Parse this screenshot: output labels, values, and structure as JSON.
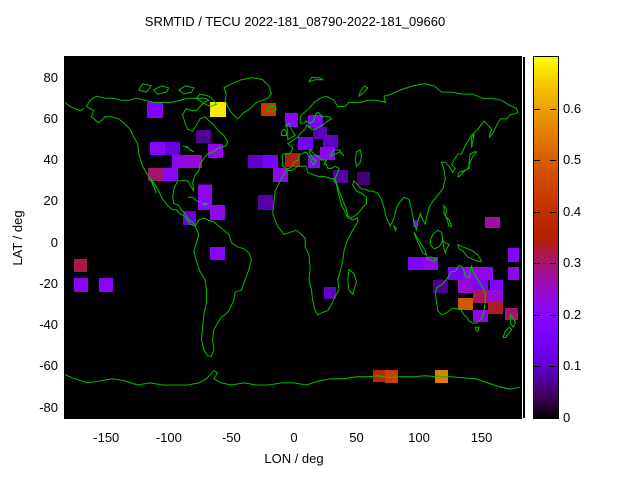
{
  "title": "SRMTID / TECU 2022-181_08790-2022-181_09660",
  "chart_data": {
    "type": "heatmap",
    "title": "SRMTID / TECU 2022-181_08790-2022-181_09660",
    "xlabel": "LON / deg",
    "ylabel": "LAT / deg",
    "xlim": [
      -183,
      181.5
    ],
    "ylim": [
      -85,
      90
    ],
    "xticks": [
      -150,
      -100,
      -50,
      0,
      50,
      100,
      150
    ],
    "yticks": [
      80,
      60,
      40,
      20,
      0,
      -20,
      -40,
      -60,
      -80
    ],
    "grid": false,
    "legend_position": "none",
    "background_color": "#000000",
    "coastline_color": "#00c000",
    "colorbar": {
      "min": 0,
      "max": 0.7,
      "tick_labels": [
        "0",
        "0.1",
        "0.2",
        "0.3",
        "0.4",
        "0.5",
        "0.6"
      ],
      "tick_values": [
        0,
        0.1,
        0.2,
        0.3,
        0.4,
        0.5,
        0.6
      ],
      "palette": "gnuplot pm3d rgbformulae 7,5,15 (black-purple-red-yellow)"
    },
    "cells": [
      {
        "lon": [
          -117.5,
          -104.7
        ],
        "lat": [
          60.4,
          68.2
        ],
        "tecu": 0.17
      },
      {
        "lon": [
          -67.1,
          -54.3
        ],
        "lat": [
          60.9,
          68.2
        ],
        "tecu": 0.68
      },
      {
        "lon": [
          -26.3,
          -14.3
        ],
        "lat": [
          61.4,
          67.7
        ],
        "tecu": 0.42
      },
      {
        "lon": [
          -78.3,
          -66.3
        ],
        "lat": [
          48.3,
          54.6
        ],
        "tecu": 0.07
      },
      {
        "lon": [
          -115.1,
          -103.1
        ],
        "lat": [
          42.5,
          48.8
        ],
        "tecu": 0.2
      },
      {
        "lon": [
          -103.1,
          -91.1
        ],
        "lat": [
          42.5,
          48.8
        ],
        "tecu": 0.12
      },
      {
        "lon": [
          -68.7,
          -56.7
        ],
        "lat": [
          41.0,
          47.9
        ],
        "tecu": 0.22
      },
      {
        "lon": [
          -97.5,
          -85.5
        ],
        "lat": [
          36.2,
          42.5
        ],
        "tecu": 0.22
      },
      {
        "lon": [
          -85.5,
          -73.5
        ],
        "lat": [
          36.2,
          42.5
        ],
        "tecu": 0.24
      },
      {
        "lon": [
          -116.7,
          -104.7
        ],
        "lat": [
          29.9,
          36.2
        ],
        "tecu": 0.3
      },
      {
        "lon": [
          -104.7,
          -92.7
        ],
        "lat": [
          29.9,
          36.2
        ],
        "tecu": 0.2
      },
      {
        "lon": [
          -76.7,
          -65.5
        ],
        "lat": [
          21.6,
          28.1
        ],
        "tecu": 0.22
      },
      {
        "lon": [
          -76.7,
          -65.5
        ],
        "lat": [
          15.8,
          22.1
        ],
        "tecu": 0.2
      },
      {
        "lon": [
          -67.1,
          -55.1
        ],
        "lat": [
          11.0,
          18.3
        ],
        "tecu": 0.22
      },
      {
        "lon": [
          -88.7,
          -78.3
        ],
        "lat": [
          8.6,
          15.4
        ],
        "tecu": 0.12
      },
      {
        "lon": [
          -7.1,
          3.3
        ],
        "lat": [
          56.1,
          62.8
        ],
        "tecu": 0.2
      },
      {
        "lon": [
          11.3,
          23.3
        ],
        "lat": [
          55.6,
          61.9
        ],
        "tecu": 0.17
      },
      {
        "lon": [
          15.3,
          26.5
        ],
        "lat": [
          50.2,
          56.1
        ],
        "tecu": 0.09
      },
      {
        "lon": [
          3.3,
          15.3
        ],
        "lat": [
          44.9,
          51.2
        ],
        "tecu": 0.15
      },
      {
        "lon": [
          23.3,
          35.3
        ],
        "lat": [
          45.9,
          52.2
        ],
        "tecu": 0.1
      },
      {
        "lon": [
          20.9,
          32.9
        ],
        "lat": [
          40.1,
          46.4
        ],
        "tecu": 0.22
      },
      {
        "lon": [
          -36.7,
          -24.7
        ],
        "lat": [
          36.2,
          42.5
        ],
        "tecu": 0.1
      },
      {
        "lon": [
          -24.7,
          -12.7
        ],
        "lat": [
          36.2,
          42.5
        ],
        "tecu": 0.15
      },
      {
        "lon": [
          -7.1,
          4.9
        ],
        "lat": [
          36.7,
          43.5
        ],
        "tecu": 0.34
      },
      {
        "lon": [
          11.3,
          20.9
        ],
        "lat": [
          36.2,
          42.5
        ],
        "tecu": 0.2
      },
      {
        "lon": [
          -16.7,
          -4.7
        ],
        "lat": [
          29.4,
          36.2
        ],
        "tecu": 0.22
      },
      {
        "lon": [
          31.3,
          43.3
        ],
        "lat": [
          28.9,
          35.2
        ],
        "tecu": 0.08
      },
      {
        "lon": [
          50.5,
          60.9
        ],
        "lat": [
          28.0,
          34.2
        ],
        "tecu": 0.05
      },
      {
        "lon": [
          -28.7,
          -16.7
        ],
        "lat": [
          15.8,
          23.1
        ],
        "tecu": 0.08
      },
      {
        "lon": [
          -175.8,
          -165.4
        ],
        "lat": [
          -14.2,
          -7.9
        ],
        "tecu": 0.32
      },
      {
        "lon": [
          -175.8,
          -164.6
        ],
        "lat": [
          -23.9,
          -17.1
        ],
        "tecu": 0.2
      },
      {
        "lon": [
          -155.8,
          -144.6
        ],
        "lat": [
          -23.9,
          -17.1
        ],
        "tecu": 0.2
      },
      {
        "lon": [
          -67.1,
          -55.1
        ],
        "lat": [
          -8.4,
          -2.1
        ],
        "tecu": 0.2
      },
      {
        "lon": [
          24.1,
          33.7
        ],
        "lat": [
          -27.3,
          -21.5
        ],
        "tecu": 0.1
      },
      {
        "lon": [
          95.2,
          99.2
        ],
        "lat": [
          7.6,
          11.0
        ],
        "tecu": 0.15
      },
      {
        "lon": [
          152.7,
          164.7
        ],
        "lat": [
          7.1,
          12.4
        ],
        "tecu": 0.27
      },
      {
        "lon": [
          91.2,
          103.2
        ],
        "lat": [
          -13.2,
          -6.9
        ],
        "tecu": 0.17
      },
      {
        "lon": [
          103.2,
          115.2
        ],
        "lat": [
          -13.2,
          -6.9
        ],
        "tecu": 0.22
      },
      {
        "lon": [
          171.1,
          180.0
        ],
        "lat": [
          -9.4,
          -2.6
        ],
        "tecu": 0.2
      },
      {
        "lon": [
          123.1,
          135.1
        ],
        "lat": [
          -18.1,
          -11.8
        ],
        "tecu": 0.15
      },
      {
        "lon": [
          135.1,
          147.1
        ],
        "lat": [
          -18.1,
          -11.8
        ],
        "tecu": 0.22
      },
      {
        "lon": [
          147.1,
          159.1
        ],
        "lat": [
          -18.1,
          -11.8
        ],
        "tecu": 0.22
      },
      {
        "lon": [
          171.1,
          180.0
        ],
        "lat": [
          -18.1,
          -11.8
        ],
        "tecu": 0.22
      },
      {
        "lon": [
          111.1,
          123.1
        ],
        "lat": [
          -24.4,
          -18.1
        ],
        "tecu": 0.07
      },
      {
        "lon": [
          131.1,
          143.1
        ],
        "lat": [
          -24.4,
          -18.1
        ],
        "tecu": 0.24
      },
      {
        "lon": [
          143.1,
          155.1
        ],
        "lat": [
          -23.9,
          -18.1
        ],
        "tecu": 0.17
      },
      {
        "lon": [
          156.7,
          167.1
        ],
        "lat": [
          -23.9,
          -18.1
        ],
        "tecu": 0.18
      },
      {
        "lon": [
          143.1,
          155.1
        ],
        "lat": [
          -29.3,
          -22.9
        ],
        "tecu": 0.31
      },
      {
        "lon": [
          131.1,
          143.1
        ],
        "lat": [
          -32.7,
          -26.8
        ],
        "tecu": 0.49
      },
      {
        "lon": [
          143.1,
          155.1
        ],
        "lat": [
          -38.5,
          -32.7
        ],
        "tecu": 0.22
      },
      {
        "lon": [
          155.1,
          167.1
        ],
        "lat": [
          -28.8,
          -22.9
        ],
        "tecu": 0.24
      },
      {
        "lon": [
          155.1,
          167.1
        ],
        "lat": [
          -34.6,
          -28.8
        ],
        "tecu": 0.33
      },
      {
        "lon": [
          168.7,
          179.1
        ],
        "lat": [
          -37.5,
          -31.7
        ],
        "tecu": 0.3
      },
      {
        "lon": [
          63.2,
          72.8
        ],
        "lat": [
          -67.5,
          -61.7
        ],
        "tecu": 0.38
      },
      {
        "lon": [
          72.8,
          83.2
        ],
        "lat": [
          -68.0,
          -61.7
        ],
        "tecu": 0.44
      },
      {
        "lon": [
          112.7,
          123.1
        ],
        "lat": [
          -68.0,
          -61.7
        ],
        "tecu": 0.55
      }
    ]
  }
}
